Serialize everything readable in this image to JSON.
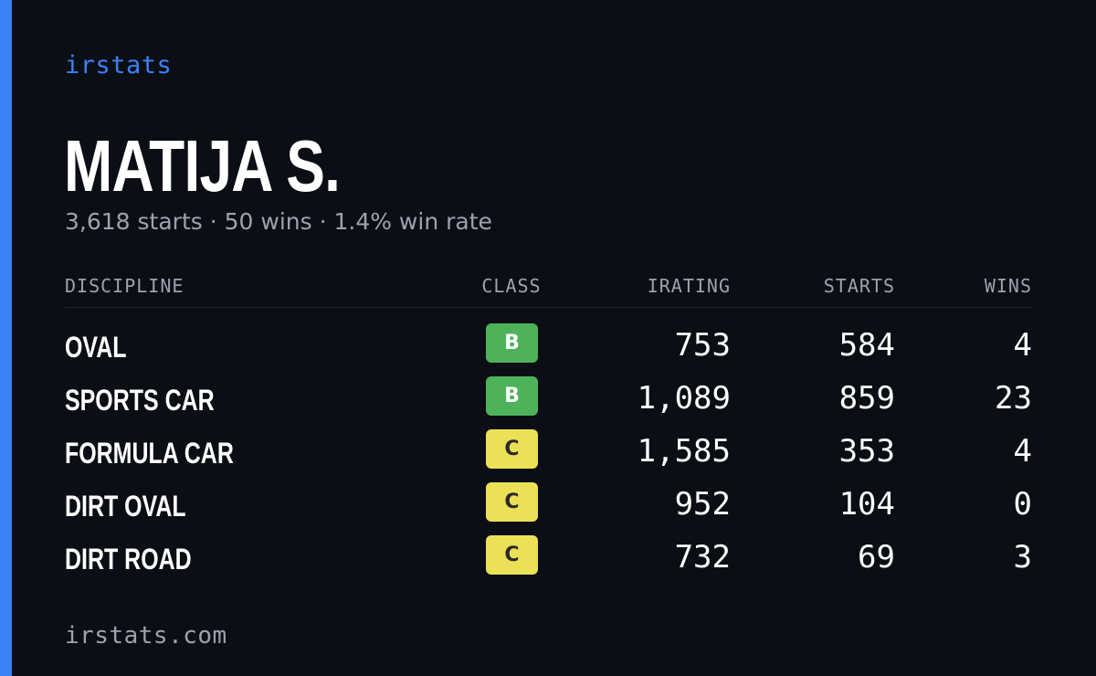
{
  "brand": "irstats",
  "driver": {
    "name": "MATIJA S.",
    "summary": "3,618 starts · 50 wins · 1.4% win rate"
  },
  "table": {
    "headers": {
      "discipline": "DISCIPLINE",
      "class": "CLASS",
      "irating": "IRATING",
      "starts": "STARTS",
      "wins": "WINS"
    },
    "rows": [
      {
        "discipline": "OVAL",
        "class": "B",
        "irating": "753",
        "starts": "584",
        "wins": "4"
      },
      {
        "discipline": "SPORTS CAR",
        "class": "B",
        "irating": "1,089",
        "starts": "859",
        "wins": "23"
      },
      {
        "discipline": "FORMULA CAR",
        "class": "C",
        "irating": "1,585",
        "starts": "353",
        "wins": "4"
      },
      {
        "discipline": "DIRT OVAL",
        "class": "C",
        "irating": "952",
        "starts": "104",
        "wins": "0"
      },
      {
        "discipline": "DIRT ROAD",
        "class": "C",
        "irating": "732",
        "starts": "69",
        "wins": "3"
      }
    ]
  },
  "class_colors": {
    "B": {
      "bg": "#4db25a",
      "fg": "#ffffff"
    },
    "C": {
      "bg": "#ece156",
      "fg": "#2a2a2a"
    }
  },
  "accent_color": "#3b82f6",
  "footer": "irstats.com"
}
